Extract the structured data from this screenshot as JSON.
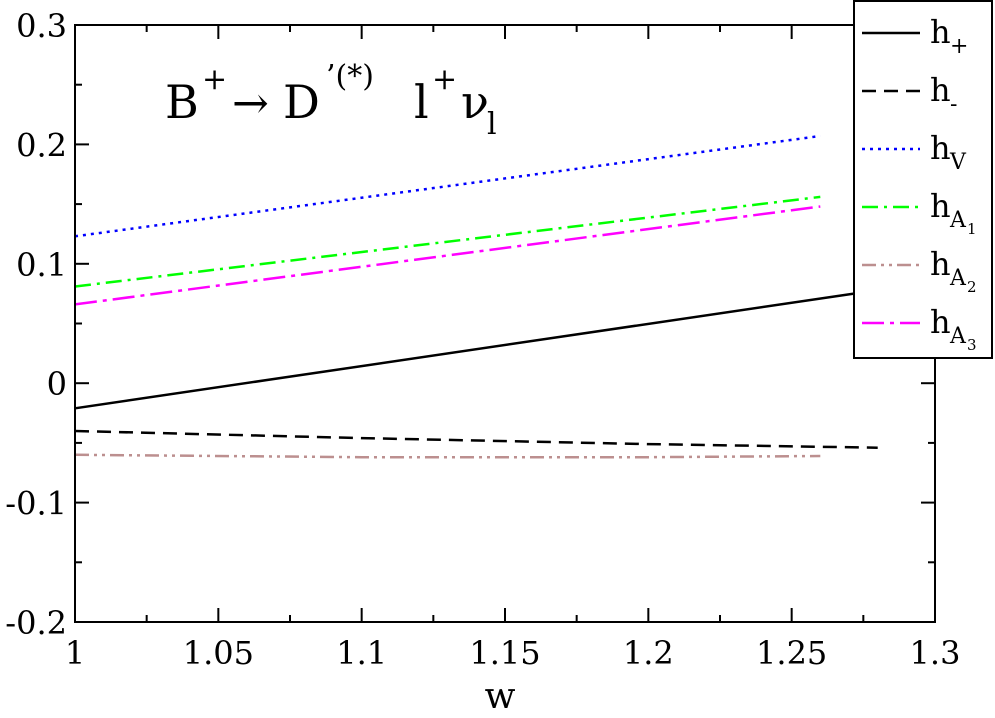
{
  "chart_data": {
    "type": "line",
    "annotation": {
      "B": "B",
      "plus1": "+",
      "arrow": "→",
      "D": "D",
      "dsup": "’(*)",
      "l": "l",
      "plus2": "+",
      "nu": "ν",
      "sub": "l"
    },
    "xlabel": "w",
    "ylabel": "",
    "xlim": [
      1.0,
      1.3
    ],
    "ylim": [
      -0.2,
      0.3
    ],
    "xticks": [
      "1",
      "1.05",
      "1.1",
      "1.15",
      "1.2",
      "1.25",
      "1.3"
    ],
    "xtick_values": [
      1.0,
      1.05,
      1.1,
      1.15,
      1.2,
      1.25,
      1.3
    ],
    "yticks": [
      "-0.2",
      "-0.1",
      "0",
      "0.1",
      "0.2",
      "0.3"
    ],
    "ytick_values": [
      -0.2,
      -0.1,
      0.0,
      0.1,
      0.2,
      0.3
    ],
    "legend_position": "top-right",
    "series": [
      {
        "name": "h",
        "sub": "+",
        "color": "#000000",
        "dash": "solid",
        "x": [
          1.0,
          1.28
        ],
        "y": [
          -0.021,
          0.078
        ]
      },
      {
        "name": "h",
        "sub": "-",
        "color": "#000000",
        "dash": "dashed",
        "x": [
          1.0,
          1.1,
          1.2,
          1.28
        ],
        "y": [
          -0.04,
          -0.046,
          -0.051,
          -0.054
        ]
      },
      {
        "name": "h",
        "sub": "V",
        "color": "#0000ff",
        "dash": "dotted",
        "x": [
          1.0,
          1.26
        ],
        "y": [
          0.123,
          0.207
        ]
      },
      {
        "name": "h",
        "sub": "A",
        "subsub": "1",
        "color": "#00ff00",
        "dash": "dashdot",
        "x": [
          1.0,
          1.26
        ],
        "y": [
          0.081,
          0.156
        ]
      },
      {
        "name": "h",
        "sub": "A",
        "subsub": "2",
        "color": "#bc8f8f",
        "dash": "dashdotdot",
        "x": [
          1.0,
          1.1,
          1.2,
          1.26
        ],
        "y": [
          -0.06,
          -0.062,
          -0.062,
          -0.061
        ]
      },
      {
        "name": "h",
        "sub": "A",
        "subsub": "3",
        "color": "#ff00ff",
        "dash": "longdashdot",
        "x": [
          1.0,
          1.26
        ],
        "y": [
          0.066,
          0.148
        ]
      }
    ]
  }
}
